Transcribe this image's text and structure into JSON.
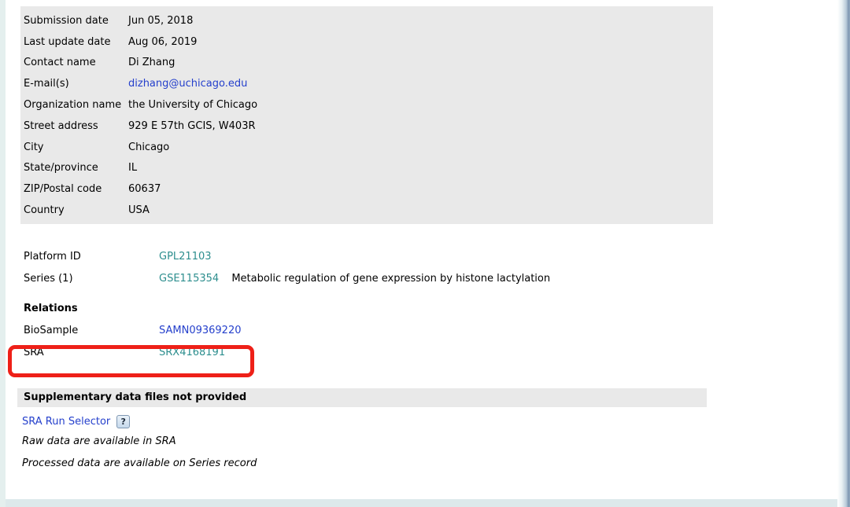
{
  "colors": {
    "link_blue": "#2540cc",
    "link_teal": "#2d8e8e",
    "annotation_red": "#ee2018",
    "block_gray": "#e9e9e9"
  },
  "contact": {
    "rows": [
      {
        "label": "Submission date",
        "value": "Jun 05, 2018"
      },
      {
        "label": "Last update date",
        "value": "Aug 06, 2019"
      },
      {
        "label": "Contact name",
        "value": "Di Zhang"
      },
      {
        "label": "E-mail(s)",
        "value": "dizhang@uchicago.edu"
      },
      {
        "label": "Organization name",
        "value": "the University of Chicago"
      },
      {
        "label": "Street address",
        "value": "929 E 57th GCIS, W403R"
      },
      {
        "label": "City",
        "value": "Chicago"
      },
      {
        "label": "State/province",
        "value": "IL"
      },
      {
        "label": "ZIP/Postal code",
        "value": "60637"
      },
      {
        "label": "Country",
        "value": "USA"
      }
    ]
  },
  "platform": {
    "label": "Platform ID",
    "value": "GPL21103"
  },
  "series": {
    "label": "Series (1)",
    "accession": "GSE115354",
    "title": "Metabolic regulation of gene expression by histone lactylation"
  },
  "relations": {
    "heading": "Relations",
    "rows": [
      {
        "label": "BioSample",
        "value": "SAMN09369220"
      },
      {
        "label": "SRA",
        "value": "SRX4168191"
      }
    ]
  },
  "supplementary": {
    "heading": "Supplementary data files not provided",
    "sra_run_selector_label": "SRA Run Selector",
    "help_icon_glyph": "?",
    "raw_note": "Raw data are available in SRA",
    "processed_note": "Processed data are available on Series record"
  }
}
